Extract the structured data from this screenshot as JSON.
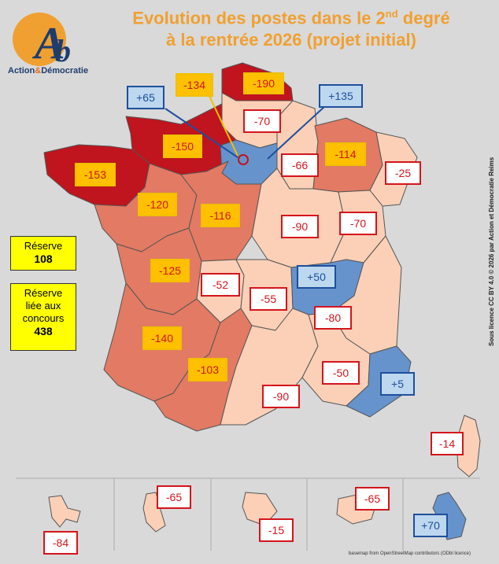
{
  "title": {
    "line1": "Evolution des postes dans le 2",
    "sup": "nd",
    "line1_end": " degré",
    "line2": "à la rentrée 2026 (projet initial)"
  },
  "logo": {
    "letters": "Ab",
    "name_a": "Action",
    "name_amp": "&",
    "name_b": "Démocratie"
  },
  "reserve": {
    "label": "Réserve",
    "value": "108"
  },
  "reserve_concours": {
    "label1": "Réserve",
    "label2": "liée aux",
    "label3": "concours",
    "value": "438"
  },
  "colors": {
    "dark_loss": "#c0141e",
    "mid_loss": "#e37a63",
    "light_loss": "#fbd0b7",
    "gain": "#6793cc",
    "label_red": "#d4141c",
    "label_blue": "#1d4f9c",
    "yellow_box": "#ffc000"
  },
  "labels": [
    {
      "id": "hauts-de-france",
      "text": "-190",
      "kind": "yellow"
    },
    {
      "id": "normandie-rouen",
      "text": "-134",
      "kind": "yellow"
    },
    {
      "id": "paris",
      "text": "+65",
      "kind": "blue"
    },
    {
      "id": "versailles-creteil",
      "text": "+135",
      "kind": "blue"
    },
    {
      "id": "amiens",
      "text": "-70",
      "kind": "red"
    },
    {
      "id": "normandie",
      "text": "-150",
      "kind": "yellow"
    },
    {
      "id": "bretagne",
      "text": "-153",
      "kind": "yellow"
    },
    {
      "id": "reims",
      "text": "-66",
      "kind": "red"
    },
    {
      "id": "nancy-metz",
      "text": "-114",
      "kind": "yellow"
    },
    {
      "id": "strasbourg",
      "text": "-25",
      "kind": "red"
    },
    {
      "id": "nantes",
      "text": "-120",
      "kind": "yellow"
    },
    {
      "id": "orleans-tours",
      "text": "-116",
      "kind": "yellow"
    },
    {
      "id": "dijon",
      "text": "-90",
      "kind": "red"
    },
    {
      "id": "besancon",
      "text": "-70",
      "kind": "red"
    },
    {
      "id": "poitiers",
      "text": "-125",
      "kind": "yellow"
    },
    {
      "id": "limoges",
      "text": "-52",
      "kind": "red"
    },
    {
      "id": "clermont",
      "text": "-55",
      "kind": "red"
    },
    {
      "id": "lyon",
      "text": "+50",
      "kind": "blue"
    },
    {
      "id": "grenoble",
      "text": "-80",
      "kind": "red"
    },
    {
      "id": "bordeaux",
      "text": "-140",
      "kind": "yellow"
    },
    {
      "id": "toulouse",
      "text": "-103",
      "kind": "yellow"
    },
    {
      "id": "montpellier",
      "text": "-90",
      "kind": "red"
    },
    {
      "id": "aix-marseille",
      "text": "-50",
      "kind": "red"
    },
    {
      "id": "nice",
      "text": "+5",
      "kind": "blue"
    },
    {
      "id": "corse",
      "text": "-14",
      "kind": "red"
    },
    {
      "id": "guadeloupe",
      "text": "-84",
      "kind": "red"
    },
    {
      "id": "martinique",
      "text": "-65",
      "kind": "red"
    },
    {
      "id": "guyane",
      "text": "-15",
      "kind": "red"
    },
    {
      "id": "reunion",
      "text": "-65",
      "kind": "red"
    },
    {
      "id": "mayotte",
      "text": "+70",
      "kind": "blue"
    }
  ],
  "credit_vertical": "Sous licence CC BY 4.0 © 2026 par Action et Démocratie Reims",
  "credit_basemap": "basemap from OpenStreetMap contributors (ODbl licence)"
}
